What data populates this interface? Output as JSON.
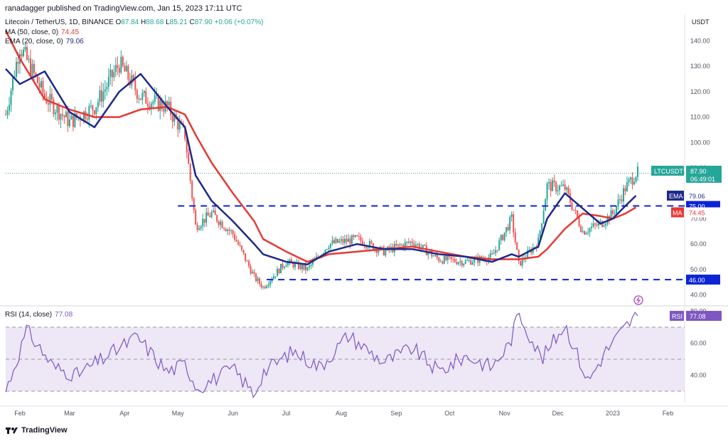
{
  "header": {
    "published": "ranadagger published on TradingView.com, Jan 15, 2023 17:11 UTC"
  },
  "symbol": {
    "name": "Litecoin / TetherUS, 1D, BINANCE",
    "o_label": "O",
    "o": "87.84",
    "h_label": "H",
    "h": "88.68",
    "l_label": "L",
    "l": "85.21",
    "c_label": "C",
    "c": "87.90",
    "change": "+0.06 (+0.07%)"
  },
  "indicators": {
    "ma": {
      "label": "MA (50, close, 0)",
      "value": "74.45",
      "color": "#e53935"
    },
    "ema": {
      "label": "EMA (20, close, 0)",
      "value": "79.06",
      "color": "#1e2a8a"
    }
  },
  "rsi": {
    "label": "RSI (14, close)",
    "value": "77.08",
    "color": "#7e57c2",
    "tag": "RSI"
  },
  "price_axis": {
    "currency": "USDT",
    "ticks": [
      "140.00",
      "130.00",
      "120.00",
      "110.00",
      "100.00",
      "90.00",
      "80.00",
      "70.00",
      "60.00",
      "50.00",
      "40.00"
    ]
  },
  "rsi_axis": {
    "ticks": [
      "80.00",
      "60.00",
      "40.00"
    ]
  },
  "time_axis": {
    "labels": [
      "Feb",
      "Mar",
      "Apr",
      "May",
      "Jun",
      "Jul",
      "Aug",
      "Sep",
      "Oct",
      "Nov",
      "Dec",
      "2023",
      "Feb"
    ]
  },
  "price_labels": {
    "ticker": "LTCUSDT",
    "last": "87.90",
    "countdown": "06:49:01",
    "ema_tag": "EMA",
    "ema_value": "79.06",
    "level_75": "75.00",
    "ma_tag": "MA",
    "ma_value": "74.45",
    "level_46": "46.00"
  },
  "brand": {
    "name": "TradingView"
  },
  "colors": {
    "up": "#26a69a",
    "down": "#ef5350",
    "ema": "#1e2a8a",
    "ma": "#e53935",
    "support": "#0b24d6",
    "rsi": "#7e57c2",
    "rsi_band": "#ede7f6",
    "last_price": "#26a69a"
  },
  "chart_data": [
    {
      "type": "line",
      "title": "Litecoin / TetherUS, 1D, BINANCE",
      "x": [
        "2022-01-24",
        "2022-02-01",
        "2022-02-15",
        "2022-03-01",
        "2022-03-15",
        "2022-03-29",
        "2022-04-10",
        "2022-04-25",
        "2022-05-05",
        "2022-05-11",
        "2022-05-20",
        "2022-06-01",
        "2022-06-13",
        "2022-06-18",
        "2022-07-01",
        "2022-07-13",
        "2022-07-25",
        "2022-08-10",
        "2022-08-25",
        "2022-09-10",
        "2022-09-25",
        "2022-10-10",
        "2022-10-25",
        "2022-11-05",
        "2022-11-09",
        "2022-11-20",
        "2022-11-25",
        "2022-12-05",
        "2022-12-15",
        "2022-12-25",
        "2023-01-01",
        "2023-01-08",
        "2023-01-14"
      ],
      "series": [
        {
          "name": "LTCUSDT",
          "values": [
            111,
            138,
            118,
            108,
            114,
            131,
            118,
            114,
            103,
            67,
            72,
            64,
            47,
            43,
            53,
            50,
            60,
            62,
            57,
            61,
            54,
            53,
            55,
            70,
            52,
            61,
            83,
            82,
            65,
            68,
            72,
            82,
            87.9
          ]
        },
        {
          "name": "EMA (20, close, 0)",
          "values": [
            129,
            123,
            128,
            112,
            106,
            120,
            127,
            114,
            106,
            87,
            77,
            69,
            60,
            56,
            53,
            52,
            57,
            60,
            58,
            58,
            56,
            55,
            53,
            56,
            55,
            59,
            70,
            80,
            74,
            68,
            70,
            75,
            79.06
          ]
        },
        {
          "name": "MA (50, close, 0)",
          "values": [
            144,
            133,
            117,
            113,
            110,
            110,
            113,
            114,
            111,
            103,
            92,
            80,
            69,
            62,
            57,
            53,
            56,
            57,
            58,
            59,
            57,
            55,
            54,
            54,
            54,
            55,
            58,
            66,
            72,
            71,
            70,
            72,
            74.45
          ]
        }
      ],
      "hlines": [
        75.0,
        46.0
      ],
      "ylim": [
        37,
        145
      ],
      "xlabel": "",
      "ylabel": ""
    },
    {
      "type": "line",
      "title": "RSI (14, close)",
      "x": [
        "2022-01-24",
        "2022-02-05",
        "2022-02-20",
        "2022-03-05",
        "2022-03-25",
        "2022-04-08",
        "2022-04-25",
        "2022-05-05",
        "2022-05-12",
        "2022-06-01",
        "2022-06-13",
        "2022-06-18",
        "2022-07-05",
        "2022-07-20",
        "2022-08-05",
        "2022-08-25",
        "2022-09-10",
        "2022-09-25",
        "2022-10-10",
        "2022-10-25",
        "2022-11-04",
        "2022-11-09",
        "2022-11-22",
        "2022-12-05",
        "2022-12-18",
        "2022-12-28",
        "2023-01-08",
        "2023-01-14"
      ],
      "series": [
        {
          "name": "RSI",
          "values": [
            30,
            68,
            45,
            40,
            54,
            64,
            42,
            47,
            32,
            44,
            28,
            42,
            55,
            45,
            65,
            48,
            57,
            42,
            52,
            45,
            60,
            79,
            50,
            72,
            36,
            55,
            70,
            77.08
          ]
        }
      ],
      "hlines": [
        70,
        50,
        30
      ],
      "ylim": [
        24,
        82
      ]
    }
  ]
}
